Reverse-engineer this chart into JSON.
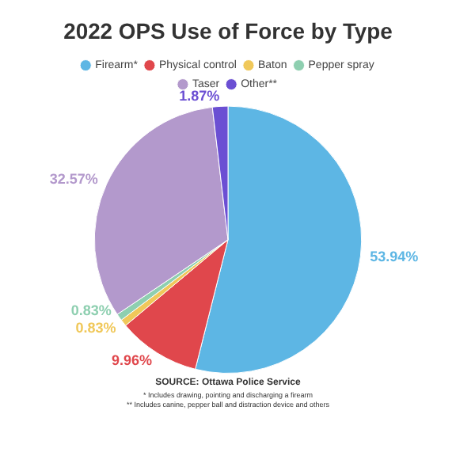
{
  "chart_data": {
    "type": "pie",
    "title": "2022 OPS Use of Force by Type",
    "categories": [
      "Firearm*",
      "Physical control",
      "Baton",
      "Pepper spray",
      "Taser",
      "Other**"
    ],
    "values": [
      53.94,
      9.96,
      0.83,
      0.83,
      32.57,
      1.87
    ],
    "value_labels": [
      "53.94%",
      "9.96%",
      "0.83%",
      "0.83%",
      "32.57%",
      "1.87%"
    ],
    "colors": [
      "#5db6e4",
      "#e0474c",
      "#f0c85a",
      "#8ecfb0",
      "#b399cc",
      "#6b4fd3"
    ],
    "legend": "top",
    "annotations": [
      "SOURCE: Ottawa Police Service",
      "* Includes drawing, pointing and discharging a firearm",
      "** Includes canine, pepper ball and distraction device and others"
    ]
  }
}
